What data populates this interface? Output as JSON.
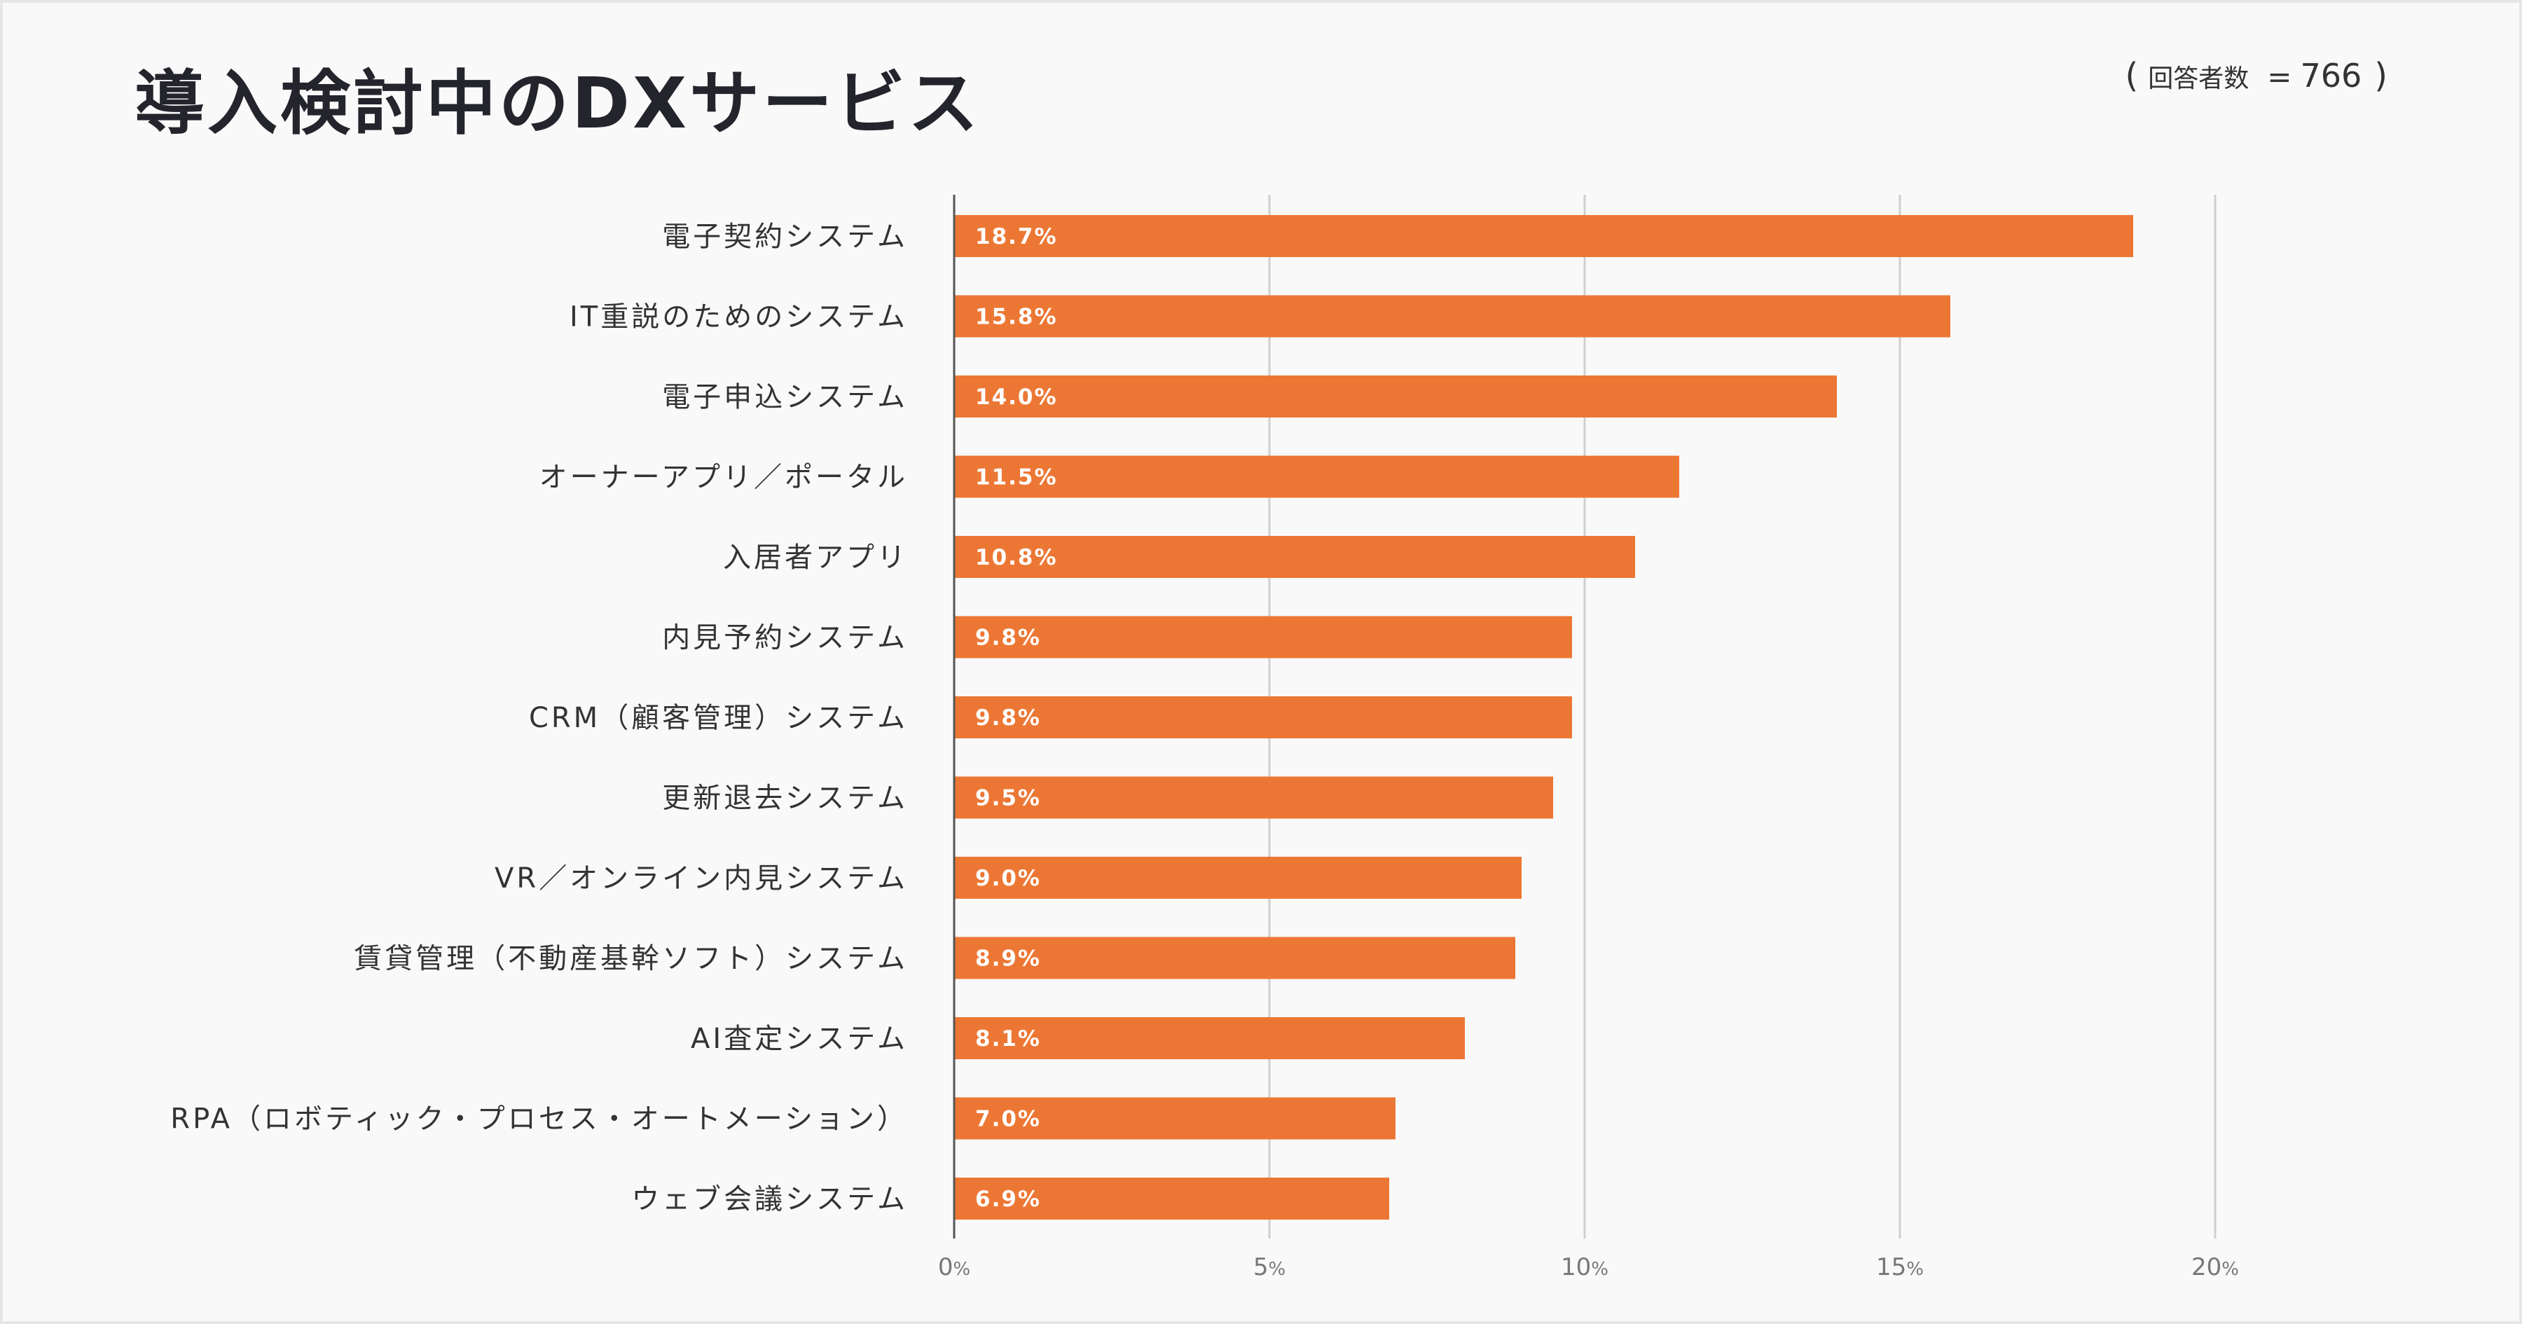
{
  "header": {
    "title": "導入検討中のDXサービス",
    "respondents_open": "(",
    "respondents_label": "回答者数",
    "respondents_eq": "=",
    "respondents_value": "766",
    "respondents_close": ")"
  },
  "chart_data": {
    "type": "bar",
    "orientation": "horizontal",
    "title": "導入検討中のDXサービス",
    "xlabel": "",
    "ylabel": "",
    "xlim": [
      0,
      20
    ],
    "xticks": [
      0,
      5,
      10,
      15,
      20
    ],
    "tick_suffix": "%",
    "grid": true,
    "bar_color": "#ec7734",
    "categories": [
      "電子契約システム",
      "IT重説のためのシステム",
      "電子申込システム",
      "オーナーアプリ／ポータル",
      "入居者アプリ",
      "内見予約システム",
      "CRM（顧客管理）システム",
      "更新退去システム",
      "VR／オンライン内見システム",
      "賃貸管理（不動産基幹ソフト）システム",
      "AI査定システム",
      "RPA（ロボティック・プロセス・オートメーション）",
      "ウェブ会議システム"
    ],
    "values": [
      18.7,
      15.8,
      14.0,
      11.5,
      10.8,
      9.8,
      9.8,
      9.5,
      9.0,
      8.9,
      8.1,
      7.0,
      6.9
    ],
    "data_labels": [
      "18.7%",
      "15.8%",
      "14.0%",
      "11.5%",
      "10.8%",
      "9.8%",
      "9.8%",
      "9.5%",
      "9.0%",
      "8.9%",
      "8.1%",
      "7.0%",
      "6.9%"
    ]
  }
}
